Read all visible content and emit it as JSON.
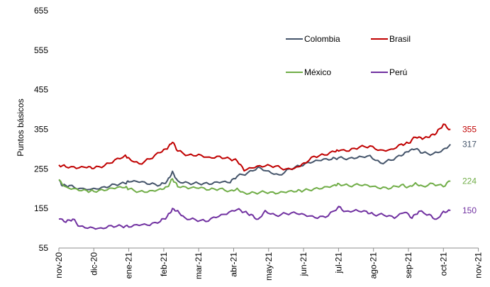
{
  "chart_data": {
    "type": "line",
    "title": "",
    "xlabel": "",
    "ylabel": "Puntos básicos",
    "ylim": [
      55,
      655
    ],
    "yticks": [
      55,
      155,
      255,
      355,
      455,
      555,
      655
    ],
    "xticks": [
      "nov-20",
      "dic-20",
      "ene-21",
      "feb-21",
      "mar-21",
      "abr-21",
      "may-21",
      "jun-21",
      "jul-21",
      "ago-21",
      "sep-21",
      "oct-21",
      "nov-21"
    ],
    "grid": false,
    "legend": "top-right",
    "series": [
      {
        "name": "Colombia",
        "color": "#44546A",
        "end_label": "317",
        "points": [
          [
            0.0,
            226
          ],
          [
            0.1,
            212
          ],
          [
            0.3,
            213
          ],
          [
            0.6,
            206
          ],
          [
            1.0,
            206
          ],
          [
            1.3,
            210
          ],
          [
            1.6,
            216
          ],
          [
            1.9,
            218
          ],
          [
            2.0,
            222
          ],
          [
            2.3,
            221
          ],
          [
            2.6,
            216
          ],
          [
            2.9,
            214
          ],
          [
            3.1,
            225
          ],
          [
            3.25,
            249
          ],
          [
            3.4,
            225
          ],
          [
            3.7,
            220
          ],
          [
            4.0,
            218
          ],
          [
            4.3,
            216
          ],
          [
            4.6,
            220
          ],
          [
            4.9,
            220
          ],
          [
            5.1,
            236
          ],
          [
            5.4,
            245
          ],
          [
            5.7,
            260
          ],
          [
            6.0,
            250
          ],
          [
            6.3,
            240
          ],
          [
            6.6,
            255
          ],
          [
            6.9,
            262
          ],
          [
            7.2,
            270
          ],
          [
            7.5,
            276
          ],
          [
            7.8,
            279
          ],
          [
            8.0,
            283
          ],
          [
            8.3,
            282
          ],
          [
            8.6,
            287
          ],
          [
            8.9,
            289
          ],
          [
            9.2,
            270
          ],
          [
            9.5,
            277
          ],
          [
            9.8,
            288
          ],
          [
            10.0,
            298
          ],
          [
            10.2,
            305
          ],
          [
            10.4,
            295
          ],
          [
            10.7,
            293
          ],
          [
            11.0,
            305
          ],
          [
            11.2,
            317
          ]
        ]
      },
      {
        "name": "Brasil",
        "color": "#C00000",
        "end_label": "355",
        "points": [
          [
            0.0,
            265
          ],
          [
            0.2,
            260
          ],
          [
            0.5,
            256
          ],
          [
            0.8,
            258
          ],
          [
            1.0,
            256
          ],
          [
            1.3,
            263
          ],
          [
            1.6,
            278
          ],
          [
            1.9,
            290
          ],
          [
            2.0,
            283
          ],
          [
            2.3,
            268
          ],
          [
            2.6,
            280
          ],
          [
            2.9,
            296
          ],
          [
            3.1,
            305
          ],
          [
            3.25,
            322
          ],
          [
            3.4,
            300
          ],
          [
            3.7,
            290
          ],
          [
            4.0,
            292
          ],
          [
            4.3,
            285
          ],
          [
            4.6,
            287
          ],
          [
            4.9,
            280
          ],
          [
            5.1,
            275
          ],
          [
            5.3,
            250
          ],
          [
            5.6,
            258
          ],
          [
            5.9,
            262
          ],
          [
            6.2,
            262
          ],
          [
            6.5,
            255
          ],
          [
            6.8,
            260
          ],
          [
            7.0,
            270
          ],
          [
            7.3,
            287
          ],
          [
            7.6,
            290
          ],
          [
            7.9,
            298
          ],
          [
            8.0,
            300
          ],
          [
            8.3,
            300
          ],
          [
            8.6,
            310
          ],
          [
            8.9,
            313
          ],
          [
            9.2,
            303
          ],
          [
            9.5,
            305
          ],
          [
            9.8,
            318
          ],
          [
            10.0,
            320
          ],
          [
            10.2,
            335
          ],
          [
            10.4,
            330
          ],
          [
            10.6,
            335
          ],
          [
            10.8,
            345
          ],
          [
            11.0,
            368
          ],
          [
            11.2,
            355
          ]
        ]
      },
      {
        "name": "México",
        "color": "#70AD47",
        "end_label": "224",
        "points": [
          [
            0.0,
            228
          ],
          [
            0.2,
            210
          ],
          [
            0.5,
            205
          ],
          [
            0.8,
            200
          ],
          [
            1.0,
            198
          ],
          [
            1.3,
            200
          ],
          [
            1.6,
            205
          ],
          [
            1.9,
            208
          ],
          [
            2.0,
            204
          ],
          [
            2.3,
            198
          ],
          [
            2.6,
            200
          ],
          [
            2.9,
            205
          ],
          [
            3.1,
            210
          ],
          [
            3.25,
            230
          ],
          [
            3.4,
            210
          ],
          [
            3.7,
            205
          ],
          [
            4.0,
            206
          ],
          [
            4.3,
            202
          ],
          [
            4.6,
            205
          ],
          [
            4.9,
            200
          ],
          [
            5.1,
            206
          ],
          [
            5.3,
            195
          ],
          [
            5.6,
            195
          ],
          [
            5.9,
            196
          ],
          [
            6.2,
            192
          ],
          [
            6.5,
            195
          ],
          [
            6.8,
            198
          ],
          [
            7.0,
            200
          ],
          [
            7.3,
            205
          ],
          [
            7.6,
            210
          ],
          [
            7.9,
            215
          ],
          [
            8.0,
            218
          ],
          [
            8.3,
            212
          ],
          [
            8.6,
            214
          ],
          [
            8.9,
            210
          ],
          [
            9.2,
            205
          ],
          [
            9.5,
            206
          ],
          [
            9.8,
            215
          ],
          [
            10.0,
            210
          ],
          [
            10.2,
            220
          ],
          [
            10.4,
            212
          ],
          [
            10.7,
            218
          ],
          [
            11.0,
            210
          ],
          [
            11.2,
            224
          ]
        ]
      },
      {
        "name": "Perú",
        "color": "#7030A0",
        "end_label": "150",
        "points": [
          [
            0.0,
            128
          ],
          [
            0.2,
            120
          ],
          [
            0.4,
            128
          ],
          [
            0.6,
            110
          ],
          [
            0.9,
            108
          ],
          [
            1.2,
            106
          ],
          [
            1.5,
            112
          ],
          [
            1.8,
            110
          ],
          [
            2.0,
            108
          ],
          [
            2.3,
            112
          ],
          [
            2.6,
            112
          ],
          [
            2.9,
            122
          ],
          [
            3.1,
            135
          ],
          [
            3.25,
            155
          ],
          [
            3.4,
            150
          ],
          [
            3.6,
            132
          ],
          [
            3.9,
            127
          ],
          [
            4.2,
            122
          ],
          [
            4.5,
            132
          ],
          [
            4.8,
            140
          ],
          [
            5.1,
            152
          ],
          [
            5.3,
            146
          ],
          [
            5.5,
            140
          ],
          [
            5.7,
            128
          ],
          [
            5.9,
            150
          ],
          [
            6.2,
            138
          ],
          [
            6.5,
            142
          ],
          [
            6.8,
            142
          ],
          [
            7.1,
            135
          ],
          [
            7.4,
            130
          ],
          [
            7.7,
            136
          ],
          [
            8.0,
            160
          ],
          [
            8.2,
            148
          ],
          [
            8.5,
            152
          ],
          [
            8.8,
            148
          ],
          [
            9.0,
            140
          ],
          [
            9.3,
            138
          ],
          [
            9.6,
            130
          ],
          [
            9.9,
            145
          ],
          [
            10.1,
            130
          ],
          [
            10.3,
            148
          ],
          [
            10.6,
            140
          ],
          [
            10.8,
            128
          ],
          [
            11.0,
            148
          ],
          [
            11.2,
            150
          ]
        ]
      }
    ]
  }
}
